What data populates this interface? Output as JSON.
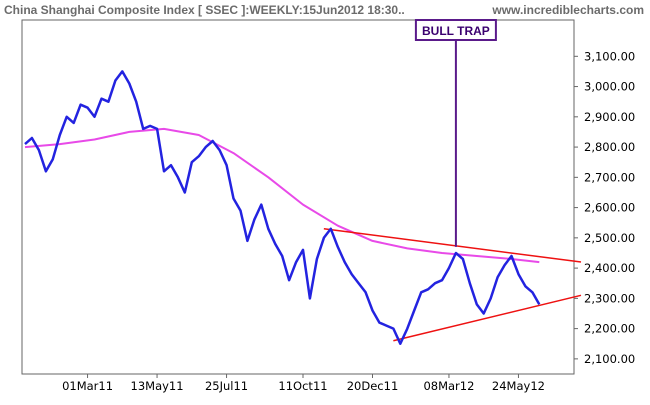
{
  "header": {
    "title": "China Shanghai Composite Index [ SSEC ]:WEEKLY:15Jun2012 18:30..",
    "site": "www.incrediblecharts.com"
  },
  "chart_data": {
    "type": "line",
    "ylim": [
      2050,
      3220
    ],
    "x_tick_labels": [
      "01Mar11",
      "13May11",
      "25Jul11",
      "11Oct11",
      "20Dec11",
      "08Mar12",
      "24May12"
    ],
    "x_tick_weeks": [
      9,
      19,
      29,
      40,
      50,
      61,
      71
    ],
    "y_ticks": [
      2100,
      2200,
      2300,
      2400,
      2500,
      2600,
      2700,
      2800,
      2900,
      3000,
      3100
    ],
    "y_tick_labels": [
      "2,100.00",
      "2,200.00",
      "2,300.00",
      "2,400.00",
      "2,500.00",
      "2,600.00",
      "2,700.00",
      "2,800.00",
      "2,900.00",
      "3,000.00",
      "3,100.00"
    ],
    "series": [
      {
        "role": "price",
        "color": "#2323e0",
        "x": [
          0,
          1,
          2,
          3,
          4,
          5,
          6,
          7,
          8,
          9,
          10,
          11,
          12,
          13,
          14,
          15,
          16,
          17,
          18,
          19,
          20,
          21,
          22,
          23,
          24,
          25,
          26,
          27,
          28,
          29,
          30,
          31,
          32,
          33,
          34,
          35,
          36,
          37,
          38,
          39,
          40,
          41,
          42,
          43,
          44,
          45,
          46,
          47,
          48,
          49,
          50,
          51,
          52,
          53,
          54,
          55,
          56,
          57,
          58,
          59,
          60,
          61,
          62,
          63,
          64,
          65,
          66,
          67,
          68,
          69,
          70,
          71,
          72,
          73,
          74
        ],
        "values": [
          2810,
          2830,
          2790,
          2720,
          2760,
          2840,
          2900,
          2880,
          2940,
          2930,
          2900,
          2960,
          2950,
          3020,
          3050,
          3010,
          2950,
          2860,
          2870,
          2860,
          2720,
          2740,
          2700,
          2650,
          2750,
          2770,
          2800,
          2820,
          2790,
          2740,
          2630,
          2590,
          2490,
          2560,
          2610,
          2530,
          2480,
          2440,
          2360,
          2420,
          2460,
          2300,
          2430,
          2500,
          2530,
          2470,
          2420,
          2380,
          2350,
          2320,
          2260,
          2220,
          2210,
          2200,
          2150,
          2200,
          2260,
          2320,
          2330,
          2350,
          2360,
          2400,
          2450,
          2430,
          2350,
          2280,
          2250,
          2300,
          2370,
          2410,
          2440,
          2380,
          2340,
          2320,
          2280
        ]
      },
      {
        "role": "moving average",
        "color": "#e84ae8",
        "x": [
          0,
          5,
          10,
          15,
          20,
          25,
          30,
          35,
          40,
          45,
          50,
          55,
          60,
          65,
          70,
          74
        ],
        "values": [
          2800,
          2810,
          2825,
          2850,
          2860,
          2840,
          2780,
          2700,
          2610,
          2540,
          2490,
          2465,
          2450,
          2440,
          2430,
          2420
        ]
      }
    ],
    "trendlines": [
      {
        "role": "upper",
        "color": "#ee1111",
        "x": [
          43,
          80
        ],
        "values": [
          2530,
          2420
        ]
      },
      {
        "role": "lower",
        "color": "#ee1111",
        "x": [
          53,
          80
        ],
        "values": [
          2160,
          2310
        ]
      }
    ],
    "annotation": {
      "text": "BULL TRAP",
      "x": 62,
      "top_value": 3150,
      "value": 2470,
      "color": "#5a1a8a"
    }
  }
}
